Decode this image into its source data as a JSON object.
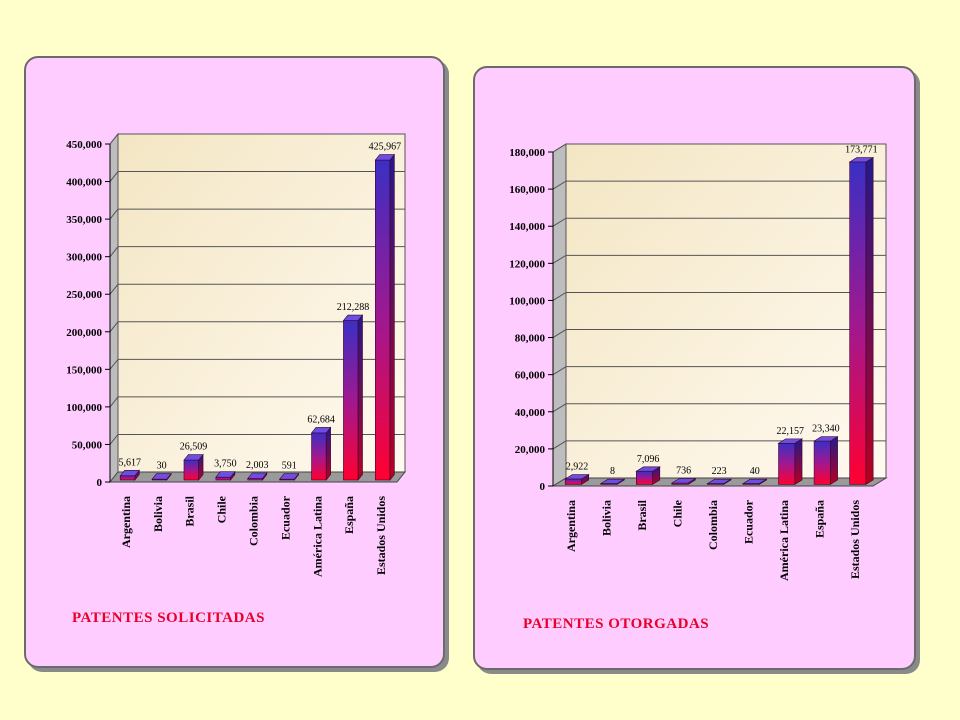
{
  "chart_data": [
    {
      "type": "bar",
      "title": "PATENTES SOLICITADAS",
      "categories": [
        "Argentina",
        "Bolivia",
        "Brasil",
        "Chile",
        "Colombia",
        "Ecuador",
        "América Latina",
        "España",
        "Estados Unidos"
      ],
      "values": [
        5617,
        30,
        26509,
        3750,
        2003,
        591,
        62684,
        212288,
        425967
      ],
      "value_labels": [
        "5,617",
        "30",
        "26,509",
        "3,750",
        "2,003",
        "591",
        "62,684",
        "212,288",
        "425,967"
      ],
      "yticks": [
        "0",
        "50,000",
        "100,000",
        "150,000",
        "200,000",
        "250,000",
        "300,000",
        "350,000",
        "400,000",
        "450,000"
      ],
      "ylim": [
        0,
        450000
      ],
      "grid": true,
      "legend": "none"
    },
    {
      "type": "bar",
      "title": "PATENTES OTORGADAS",
      "categories": [
        "Argentina",
        "Bolivia",
        "Brasil",
        "Chile",
        "Colombia",
        "Ecuador",
        "América Latina",
        "España",
        "Estados Unidos"
      ],
      "values": [
        2922,
        8,
        7096,
        736,
        223,
        40,
        22157,
        23340,
        173771
      ],
      "value_labels": [
        "2,922",
        "8",
        "7,096",
        "736",
        "223",
        "40",
        "22,157",
        "23,340",
        "173,771"
      ],
      "yticks": [
        "0",
        "20,000",
        "40,000",
        "60,000",
        "80,000",
        "100,000",
        "120,000",
        "140,000",
        "160,000",
        "180,000"
      ],
      "ylim": [
        0,
        180000
      ],
      "grid": true,
      "legend": "none"
    }
  ],
  "colors": {
    "background": "#ffffcc",
    "panel": "#ffccff",
    "plot_wall": "#fdf5e0",
    "bar_top": "#3333cc",
    "bar_bottom": "#ff0033",
    "caption": "#e8002a"
  }
}
